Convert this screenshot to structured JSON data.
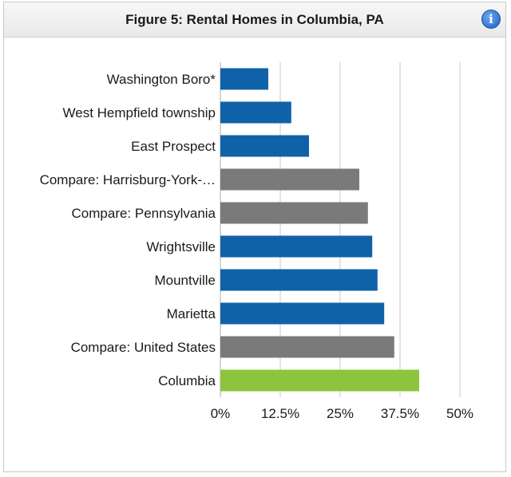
{
  "header": {
    "title": "Figure 5: Rental Homes in Columbia, PA"
  },
  "icons": {
    "info": "info-icon"
  },
  "colors": {
    "town": "#0f62a8",
    "compare": "#7a7a7a",
    "highlight": "#8dc43d",
    "grid": "#c8c8c8"
  },
  "chart_data": {
    "type": "bar",
    "orientation": "horizontal",
    "title": "Figure 5: Rental Homes in Columbia, PA",
    "xlabel": "",
    "ylabel": "",
    "xlim": [
      0,
      50
    ],
    "grid": true,
    "categories": [
      "Washington Boro*",
      "West Hempfield township",
      "East Prospect",
      "Compare: Harrisburg-York-…",
      "Compare: Pennsylvania",
      "Wrightsville",
      "Mountville",
      "Marietta",
      "Compare: United States",
      "Columbia"
    ],
    "values": [
      10,
      14.8,
      18.5,
      29,
      30.8,
      31.7,
      32.8,
      34.2,
      36.3,
      41.5
    ],
    "groups": [
      "town",
      "town",
      "town",
      "compare",
      "compare",
      "town",
      "town",
      "town",
      "compare",
      "highlight"
    ],
    "ticks": [
      0,
      12.5,
      25,
      37.5,
      50
    ],
    "tick_labels": [
      "0%",
      "12.5%",
      "25%",
      "37.5%",
      "50%"
    ]
  }
}
